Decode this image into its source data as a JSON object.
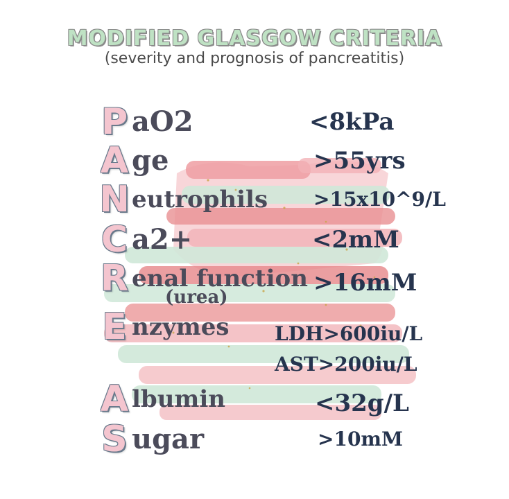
{
  "header": {
    "title": "MODIFIED GLASGOW CRITERIA",
    "subtitle": "(severity and prognosis of pancreatitis)"
  },
  "colors": {
    "title_fill": "#bfe2c4",
    "letter_fill": "#f4c5cf",
    "word_text": "#4b4b5a",
    "criterion_text": "#26344e",
    "brush_pink": "#f2b8bd",
    "brush_red": "#e98d8f",
    "brush_green": "#cfe8d8"
  },
  "rows": [
    {
      "letter": "P",
      "word": "aO2",
      "criterion": "<8kPa"
    },
    {
      "letter": "A",
      "word": "ge",
      "criterion": ">55yrs"
    },
    {
      "letter": "N",
      "word": "eutrophils",
      "criterion": ">15x10^9/L"
    },
    {
      "letter": "C",
      "word": "a2+",
      "criterion": "<2mM"
    },
    {
      "letter": "R",
      "word": "enal function",
      "word_note": "(urea)",
      "criterion": ">16mM"
    },
    {
      "letter": "E",
      "word": "nzymes",
      "criterion": "LDH>600iu/L",
      "criterion_extra": "AST>200iu/L"
    },
    {
      "letter": "A",
      "word": "lbumin",
      "criterion": "<32g/L"
    },
    {
      "letter": "S",
      "word": "ugar",
      "criterion": ">10mM"
    }
  ]
}
